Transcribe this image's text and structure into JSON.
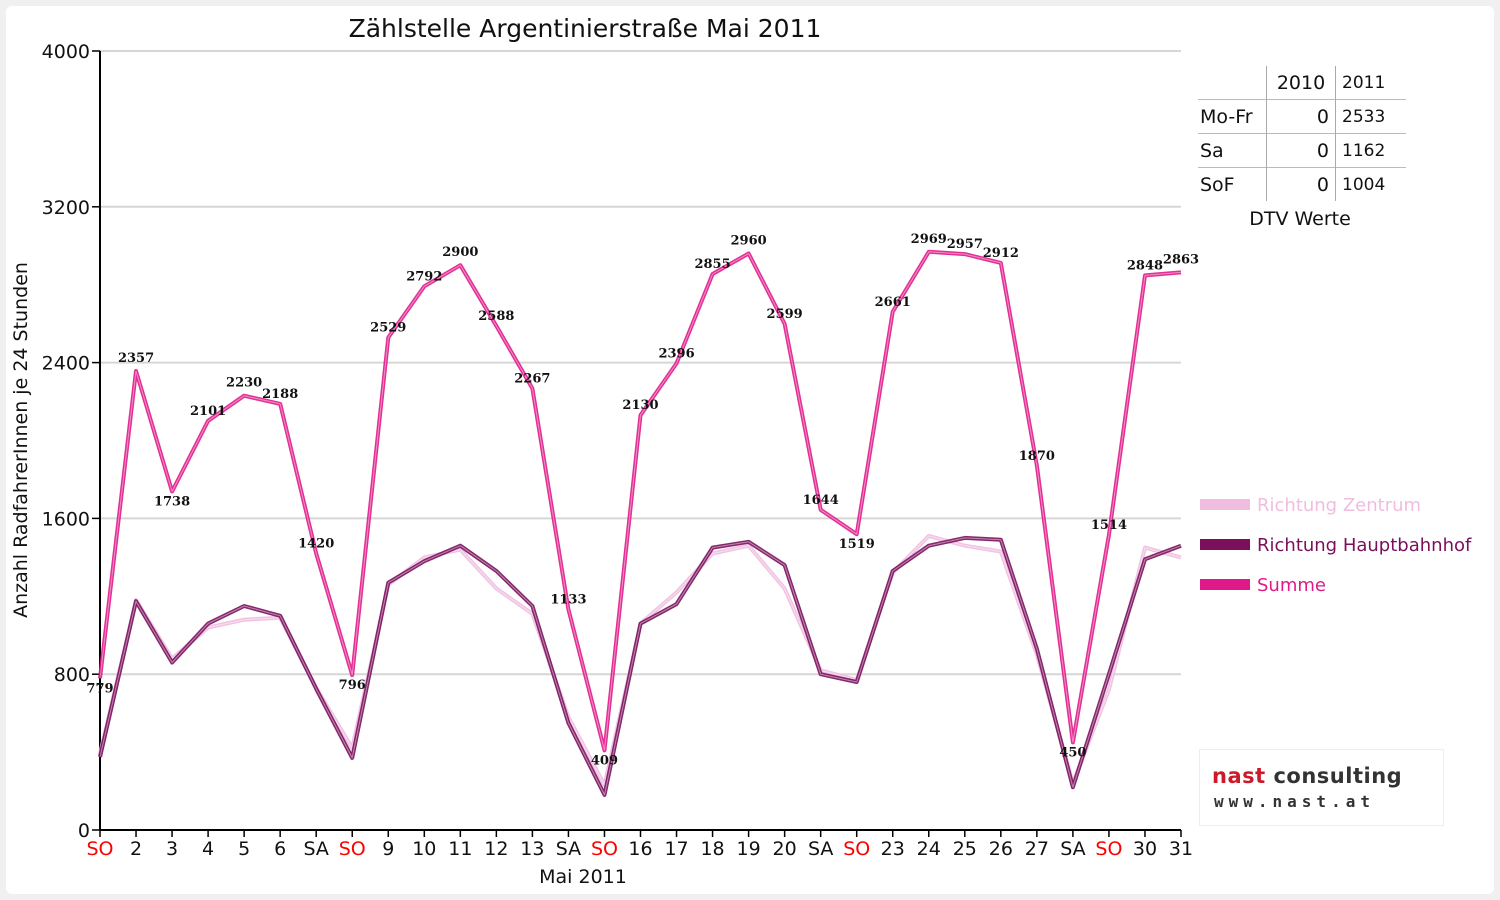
{
  "chart_data": {
    "type": "line",
    "title": "Zählstelle Argentinierstraße Mai 2011",
    "xlabel": "Mai 2011",
    "ylabel": "Anzahl RadfahrerInnen je 24 Stunden",
    "ylim": [
      0,
      4000
    ],
    "yticks": [
      0,
      800,
      1600,
      2400,
      3200,
      4000
    ],
    "grid": true,
    "legend_position": "right",
    "categories": [
      "SO",
      "2",
      "3",
      "4",
      "5",
      "6",
      "SA",
      "SO",
      "9",
      "10",
      "11",
      "12",
      "13",
      "SA",
      "SO",
      "16",
      "17",
      "18",
      "19",
      "20",
      "SA",
      "SO",
      "23",
      "24",
      "25",
      "26",
      "27",
      "SA",
      "SO",
      "30",
      "31"
    ],
    "sunday_color": "#ff0000",
    "series": [
      {
        "name": "Richtung Zentrum",
        "color": "#f0bde0",
        "values": [
          390,
          1180,
          880,
          1040,
          1080,
          1090,
          730,
          420,
          1260,
          1400,
          1440,
          1240,
          1110,
          580,
          230,
          1060,
          1220,
          1420,
          1460,
          1240,
          820,
          770,
          1320,
          1510,
          1460,
          1430,
          900,
          240,
          720,
          1450,
          1400
        ]
      },
      {
        "name": "Richtung Hauptbahnhof",
        "color": "#7a0f5c",
        "values": [
          375,
          1175,
          860,
          1060,
          1150,
          1100,
          725,
          370,
          1270,
          1380,
          1460,
          1330,
          1150,
          550,
          180,
          1060,
          1160,
          1450,
          1480,
          1360,
          800,
          760,
          1330,
          1460,
          1500,
          1490,
          930,
          220,
          800,
          1390,
          1460
        ]
      },
      {
        "name": "Summe",
        "color": "#e0198a",
        "values": [
          779,
          2357,
          1738,
          2101,
          2230,
          2188,
          1420,
          796,
          2529,
          2792,
          2900,
          2588,
          2267,
          1133,
          409,
          2130,
          2396,
          2855,
          2960,
          2599,
          1644,
          1519,
          2661,
          2969,
          2957,
          2912,
          1870,
          450,
          1514,
          2848,
          2863
        ]
      }
    ],
    "data_labels": [
      779,
      2357,
      1738,
      2101,
      2230,
      2188,
      1420,
      796,
      2529,
      2792,
      2900,
      2588,
      2267,
      1133,
      409,
      2130,
      2396,
      2855,
      2960,
      2599,
      1644,
      1519,
      2661,
      2969,
      2957,
      2912,
      1870,
      450,
      1514,
      2848,
      2863
    ]
  },
  "dtv_table": {
    "headers": [
      "",
      "2010",
      "2011"
    ],
    "rows": [
      {
        "label": "Mo-Fr",
        "v2010": "0",
        "v2011": "2533"
      },
      {
        "label": "Sa",
        "v2010": "0",
        "v2011": "1162"
      },
      {
        "label": "SoF",
        "v2010": "0",
        "v2011": "1004"
      }
    ],
    "caption": "DTV Werte"
  },
  "logo": {
    "brand_part1": "nast",
    "brand_part2": " consulting",
    "url": "www.nast.at",
    "brand_color": "#cc1a2a"
  }
}
